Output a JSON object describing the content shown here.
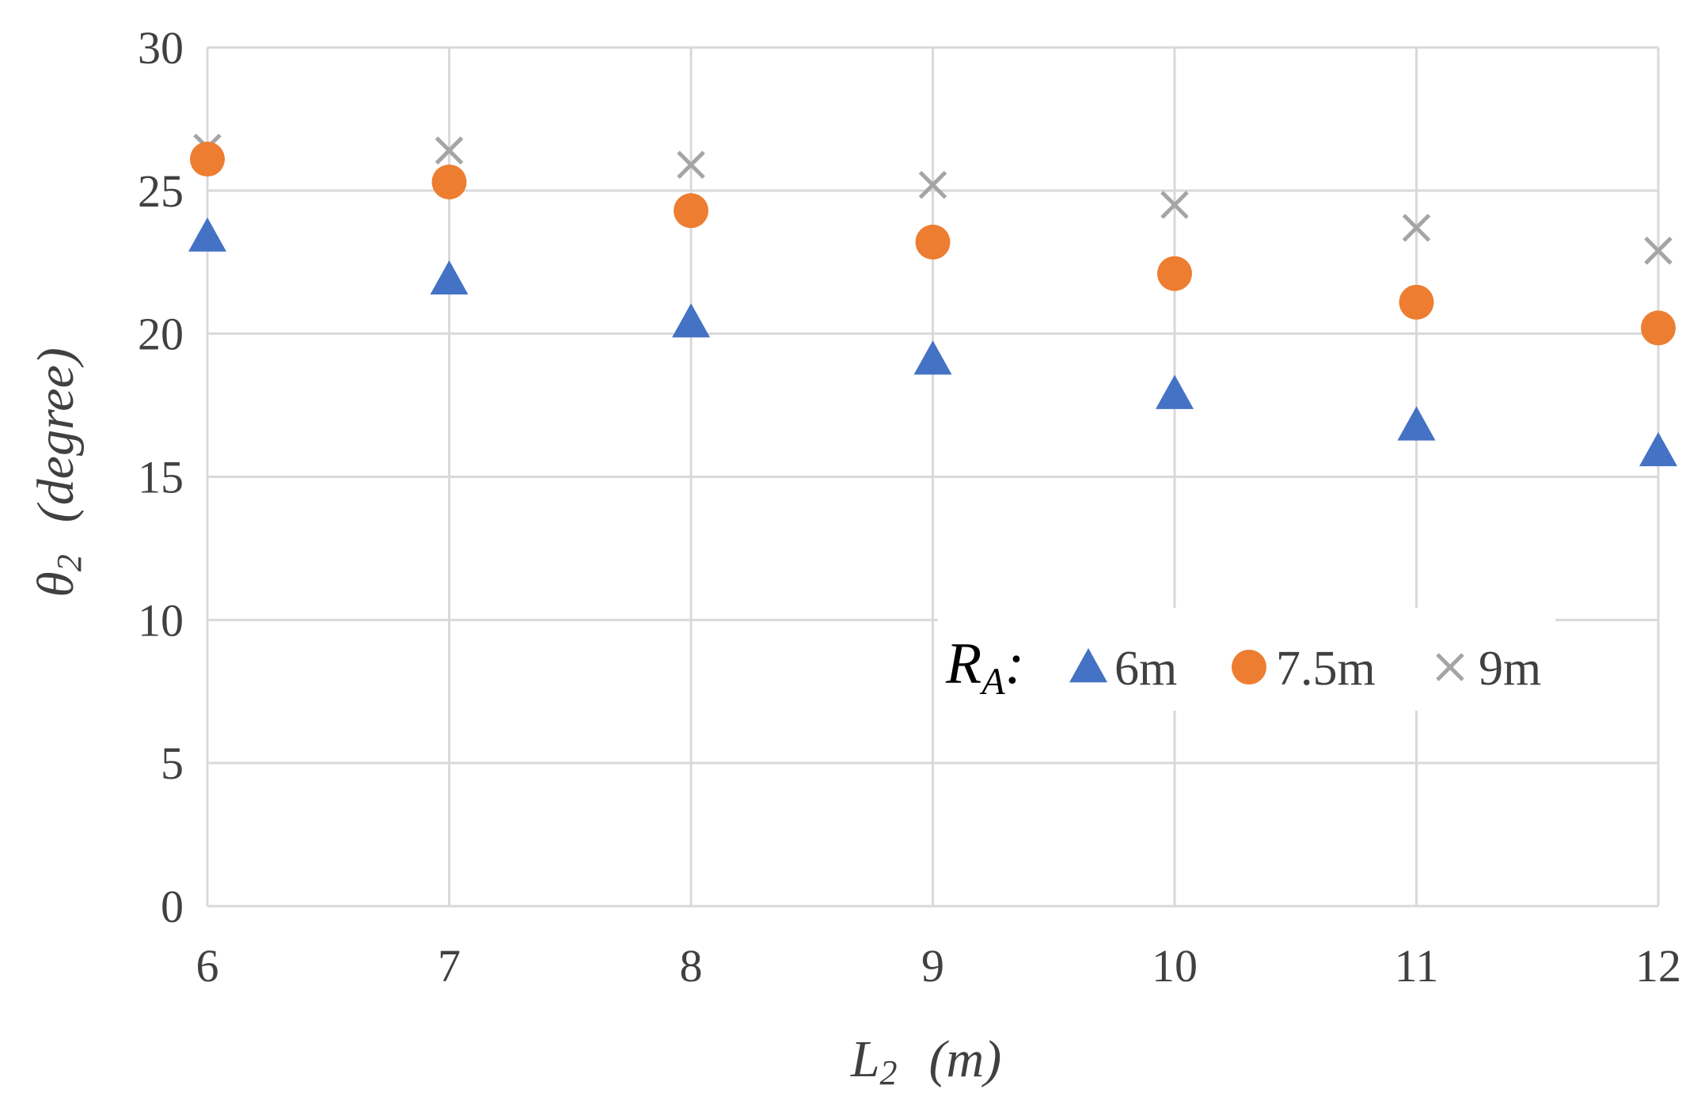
{
  "chart_data": {
    "type": "scatter",
    "x": [
      6,
      7,
      8,
      9,
      10,
      11,
      12
    ],
    "xlim": [
      6,
      12
    ],
    "ylim": [
      0,
      30
    ],
    "xticks": [
      "6",
      "7",
      "8",
      "9",
      "10",
      "11",
      "12"
    ],
    "yticks": [
      "0",
      "5",
      "10",
      "15",
      "20",
      "25",
      "30"
    ],
    "xlabel": {
      "main": "L",
      "sub": "2",
      "unit": "(m)"
    },
    "ylabel": {
      "main": "θ",
      "sub": "2",
      "unit": "(degree)"
    },
    "grid": true,
    "legend": {
      "placement": "bottom-right",
      "title_main": "R",
      "title_sub": "A",
      "title_suffix": ":"
    },
    "series": [
      {
        "name": "6m",
        "marker": "triangle",
        "color": "#4472C4",
        "values": [
          23.4,
          21.9,
          20.4,
          19.1,
          17.9,
          16.8,
          15.9
        ]
      },
      {
        "name": "7.5m",
        "marker": "circle",
        "color": "#ED7D31",
        "values": [
          26.1,
          25.3,
          24.3,
          23.2,
          22.1,
          21.1,
          20.2
        ]
      },
      {
        "name": "9m",
        "marker": "x",
        "color": "#A5A5A5",
        "values": [
          26.5,
          26.4,
          25.9,
          25.2,
          24.5,
          23.7,
          22.9
        ]
      }
    ]
  }
}
